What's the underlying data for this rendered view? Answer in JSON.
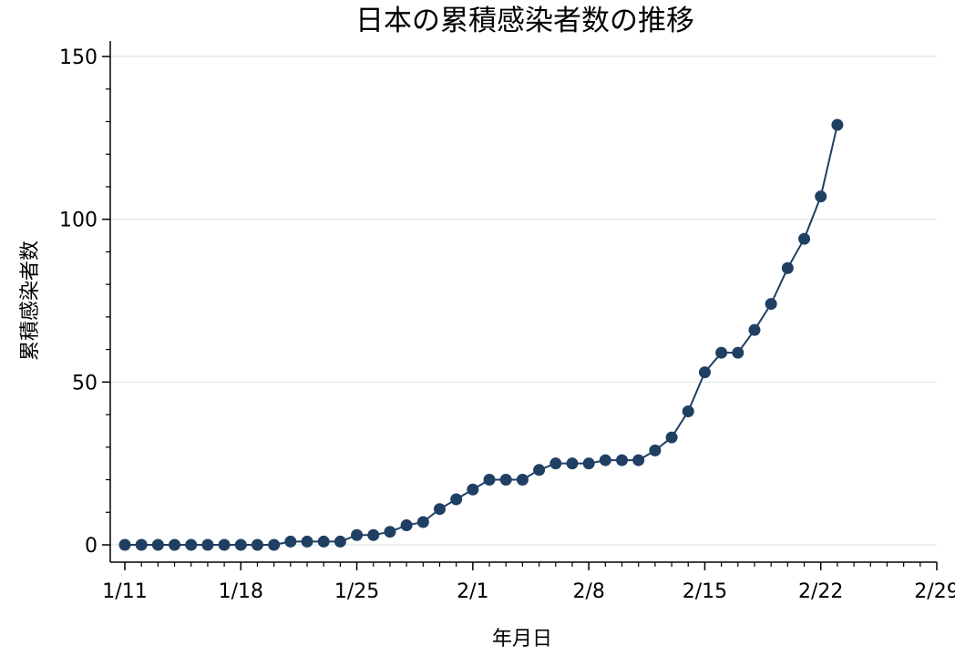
{
  "chart_data": {
    "type": "line",
    "title": "日本の累積感染者数の推移",
    "xlabel": "年月日",
    "ylabel": "累積感染者数",
    "x_ticks": [
      "1/11",
      "1/18",
      "1/25",
      "2/1",
      "2/8",
      "2/15",
      "2/22",
      "2/29"
    ],
    "y_ticks": [
      "0",
      "50",
      "100",
      "150"
    ],
    "xlim": [
      "2020-01-11",
      "2020-02-29"
    ],
    "ylim": [
      0,
      150
    ],
    "grid": true,
    "series": [
      {
        "dates": [
          "2020-01-11",
          "2020-01-12",
          "2020-01-13",
          "2020-01-14",
          "2020-01-15",
          "2020-01-16",
          "2020-01-17",
          "2020-01-18",
          "2020-01-19",
          "2020-01-20",
          "2020-01-21",
          "2020-01-22",
          "2020-01-23",
          "2020-01-24",
          "2020-01-25",
          "2020-01-26",
          "2020-01-27",
          "2020-01-28",
          "2020-01-29",
          "2020-01-30",
          "2020-01-31",
          "2020-02-01",
          "2020-02-02",
          "2020-02-03",
          "2020-02-04",
          "2020-02-05",
          "2020-02-06",
          "2020-02-07",
          "2020-02-08",
          "2020-02-09",
          "2020-02-10",
          "2020-02-11",
          "2020-02-12",
          "2020-02-13",
          "2020-02-14",
          "2020-02-15",
          "2020-02-16",
          "2020-02-17",
          "2020-02-18",
          "2020-02-19",
          "2020-02-20",
          "2020-02-21",
          "2020-02-22",
          "2020-02-23"
        ],
        "values": [
          0,
          0,
          0,
          0,
          0,
          0,
          0,
          0,
          0,
          0,
          1,
          1,
          1,
          1,
          3,
          3,
          4,
          6,
          7,
          11,
          14,
          17,
          20,
          20,
          20,
          23,
          25,
          25,
          25,
          26,
          26,
          26,
          29,
          33,
          41,
          53,
          59,
          59,
          66,
          74,
          85,
          94,
          107,
          129
        ]
      }
    ],
    "color": "#1f3f63"
  }
}
